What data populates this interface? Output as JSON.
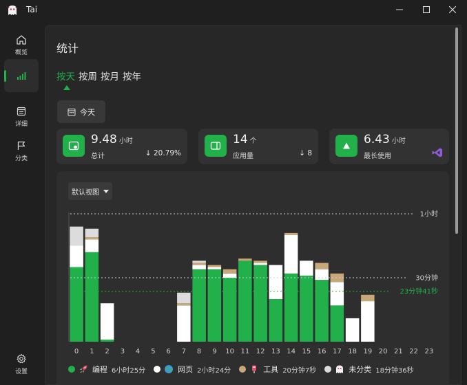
{
  "app": {
    "title": "Tai"
  },
  "sidebar": {
    "items": [
      {
        "key": "overview",
        "label": "概览"
      },
      {
        "key": "stats",
        "label": ""
      },
      {
        "key": "details",
        "label": "详细"
      },
      {
        "key": "category",
        "label": "分类"
      },
      {
        "key": "settings",
        "label": "设置"
      }
    ]
  },
  "main": {
    "title": "统计",
    "tabs": [
      {
        "label": "按天",
        "active": true
      },
      {
        "label": "按周",
        "active": false
      },
      {
        "label": "按月",
        "active": false
      },
      {
        "label": "按年",
        "active": false
      }
    ],
    "date_button": "今天",
    "cards": [
      {
        "value": "9.48",
        "unit": "小时",
        "label": "总计",
        "delta": "20.79%"
      },
      {
        "value": "14",
        "unit": "个",
        "label": "应用量",
        "delta": "8"
      },
      {
        "value": "6.43",
        "unit": "小时",
        "label": "最长使用",
        "delta": ""
      }
    ],
    "view_select": "默认视图"
  },
  "colors": {
    "accent": "#22b04b",
    "web": "#ffffff",
    "tools": "#c8a878",
    "uncategorized": "#dcdcdc"
  },
  "chart_data": {
    "type": "bar",
    "stacked": true,
    "categories": [
      "0",
      "1",
      "2",
      "3",
      "4",
      "5",
      "6",
      "7",
      "8",
      "9",
      "10",
      "11",
      "12",
      "13",
      "14",
      "15",
      "16",
      "17",
      "18",
      "19",
      "20",
      "21",
      "22",
      "23"
    ],
    "unit": "minutes",
    "ylim": [
      0,
      60
    ],
    "reference_lines": [
      {
        "label": "1小时",
        "value": 60,
        "color": "#cfcfcf"
      },
      {
        "label": "30分钟",
        "value": 30,
        "color": "#cfcfcf"
      },
      {
        "label": "23分钟41秒",
        "value": 23.68,
        "color": "#22b04b"
      }
    ],
    "series": [
      {
        "name": "编程",
        "total": "6小时25分",
        "color": "#22b04b",
        "values": [
          35,
          42,
          1,
          0,
          0,
          0,
          0,
          0,
          34,
          34,
          30,
          38,
          36,
          20,
          32,
          31,
          29,
          17,
          0,
          0,
          0,
          0,
          0,
          0
        ]
      },
      {
        "name": "网页",
        "total": "2小时24分",
        "color": "#ffffff",
        "values": [
          10,
          6,
          17,
          0,
          0,
          0,
          0,
          17,
          2,
          1,
          2,
          0,
          1,
          16,
          18,
          7,
          5,
          11,
          11,
          19,
          0,
          0,
          0,
          0
        ]
      },
      {
        "name": "工具",
        "total": "20分钟7秒",
        "color": "#c8a878",
        "values": [
          0,
          1,
          0,
          0,
          0,
          0,
          0,
          1,
          1,
          1,
          2,
          1,
          1,
          0,
          1,
          0,
          3,
          4,
          0,
          3,
          0,
          0,
          0,
          0
        ]
      },
      {
        "name": "未分类",
        "total": "18分钟36秒",
        "color": "#dcdcdc",
        "values": [
          9,
          4,
          0,
          0,
          0,
          0,
          0,
          5,
          1,
          0,
          0,
          0,
          0,
          0,
          0,
          0,
          0,
          0,
          0,
          0,
          0,
          0,
          0,
          0
        ]
      }
    ]
  }
}
